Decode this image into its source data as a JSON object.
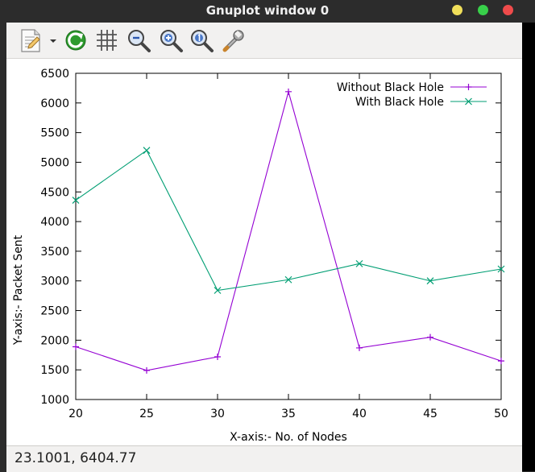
{
  "window": {
    "title": "Gnuplot window 0",
    "traffic_lights": [
      "#f0df5a",
      "#38d04a",
      "#ef4b4b"
    ]
  },
  "toolbar": {
    "icons": [
      "copy-to-clipboard-icon",
      "replot-icon",
      "grid-icon",
      "zoom-out-icon",
      "zoom-in-icon",
      "zoom-reset-icon",
      "settings-wrench-icon"
    ]
  },
  "statusbar": {
    "text": "23.1001,  6404.77"
  },
  "chart_data": {
    "type": "line",
    "xlabel": "X-axis:- No. of Nodes",
    "ylabel": "Y-axis:- Packet Sent",
    "x": [
      20,
      25,
      30,
      35,
      40,
      45,
      50
    ],
    "xlim": [
      20,
      50
    ],
    "ylim": [
      1000,
      6500
    ],
    "xticks": [
      20,
      25,
      30,
      35,
      40,
      45,
      50
    ],
    "yticks": [
      1000,
      1500,
      2000,
      2500,
      3000,
      3500,
      4000,
      4500,
      5000,
      5500,
      6000,
      6500
    ],
    "legend_position": "top-right",
    "grid": false,
    "series": [
      {
        "name": "Without Black Hole",
        "color": "#9400d3",
        "marker": "+",
        "values": [
          1890,
          1490,
          1720,
          6190,
          1870,
          2050,
          1650
        ]
      },
      {
        "name": "With Black Hole",
        "color": "#009e73",
        "marker": "x",
        "values": [
          4360,
          5200,
          2840,
          3020,
          3290,
          3000,
          3200
        ]
      }
    ]
  }
}
